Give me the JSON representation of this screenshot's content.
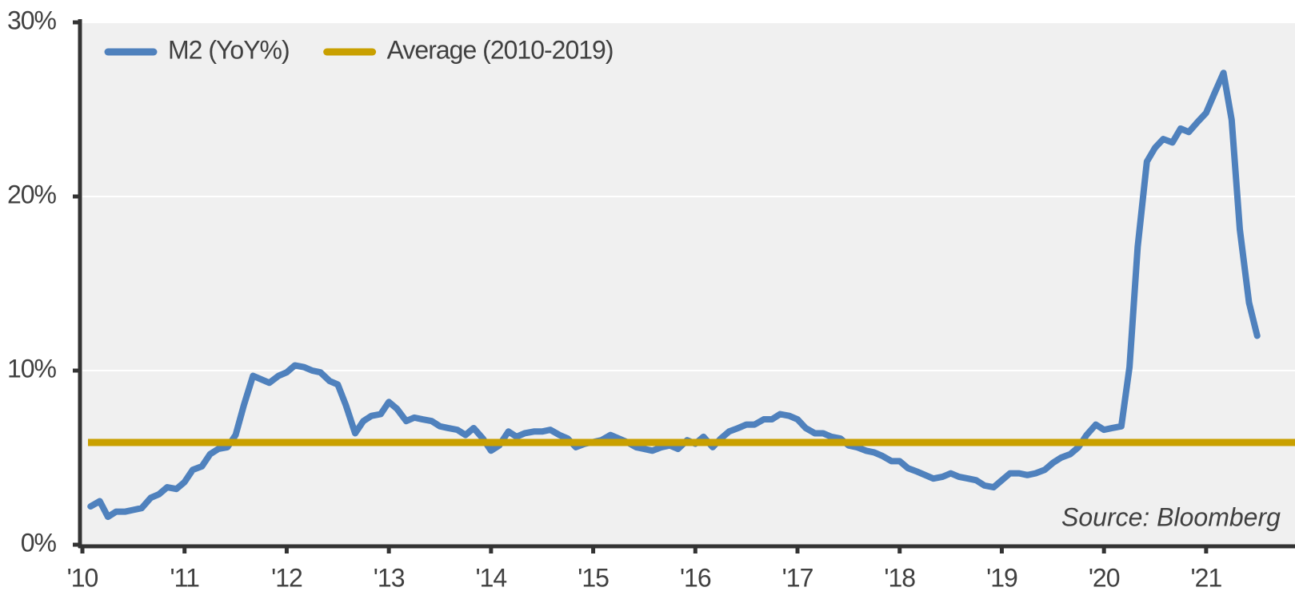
{
  "chart_data": {
    "type": "line",
    "annotation": "Source: Bloomberg",
    "x": [
      2010.08,
      2010.17,
      2010.25,
      2010.33,
      2010.42,
      2010.5,
      2010.58,
      2010.67,
      2010.75,
      2010.83,
      2010.92,
      2011.0,
      2011.08,
      2011.17,
      2011.25,
      2011.33,
      2011.42,
      2011.5,
      2011.58,
      2011.67,
      2011.75,
      2011.83,
      2011.92,
      2012.0,
      2012.08,
      2012.17,
      2012.25,
      2012.33,
      2012.42,
      2012.5,
      2012.58,
      2012.67,
      2012.75,
      2012.83,
      2012.92,
      2013.0,
      2013.08,
      2013.17,
      2013.25,
      2013.33,
      2013.42,
      2013.5,
      2013.58,
      2013.67,
      2013.75,
      2013.83,
      2013.92,
      2014.0,
      2014.08,
      2014.17,
      2014.25,
      2014.33,
      2014.42,
      2014.5,
      2014.58,
      2014.67,
      2014.75,
      2014.83,
      2014.92,
      2015.0,
      2015.08,
      2015.17,
      2015.25,
      2015.33,
      2015.42,
      2015.5,
      2015.58,
      2015.67,
      2015.75,
      2015.83,
      2015.92,
      2016.0,
      2016.08,
      2016.17,
      2016.25,
      2016.33,
      2016.42,
      2016.5,
      2016.58,
      2016.67,
      2016.75,
      2016.83,
      2016.92,
      2017.0,
      2017.08,
      2017.17,
      2017.25,
      2017.33,
      2017.42,
      2017.5,
      2017.58,
      2017.67,
      2017.75,
      2017.83,
      2017.92,
      2018.0,
      2018.08,
      2018.17,
      2018.25,
      2018.33,
      2018.42,
      2018.5,
      2018.58,
      2018.67,
      2018.75,
      2018.83,
      2018.92,
      2019.0,
      2019.08,
      2019.17,
      2019.25,
      2019.33,
      2019.42,
      2019.5,
      2019.58,
      2019.67,
      2019.75,
      2019.83,
      2019.92,
      2020.0,
      2020.08,
      2020.17,
      2020.25,
      2020.33,
      2020.42,
      2020.5,
      2020.58,
      2020.67,
      2020.75,
      2020.83,
      2020.92,
      2021.0,
      2021.08,
      2021.17,
      2021.25,
      2021.33,
      2021.42,
      2021.5
    ],
    "series": [
      {
        "name": "M2 (YoY%)",
        "color": "#4f81bd",
        "values": [
          2.2,
          2.5,
          1.6,
          1.9,
          1.9,
          2.0,
          2.1,
          2.7,
          2.9,
          3.3,
          3.2,
          3.6,
          4.3,
          4.5,
          5.2,
          5.5,
          5.6,
          6.3,
          8.0,
          9.7,
          9.5,
          9.3,
          9.7,
          9.9,
          10.3,
          10.2,
          10.0,
          9.9,
          9.4,
          9.2,
          8.0,
          6.4,
          7.1,
          7.4,
          7.5,
          8.2,
          7.8,
          7.1,
          7.3,
          7.2,
          7.1,
          6.8,
          6.7,
          6.6,
          6.3,
          6.7,
          6.1,
          5.4,
          5.7,
          6.5,
          6.2,
          6.4,
          6.5,
          6.5,
          6.6,
          6.3,
          6.1,
          5.6,
          5.8,
          5.9,
          6.0,
          6.3,
          6.1,
          5.9,
          5.6,
          5.5,
          5.4,
          5.6,
          5.7,
          5.5,
          6.0,
          5.8,
          6.2,
          5.6,
          6.1,
          6.5,
          6.7,
          6.9,
          6.9,
          7.2,
          7.2,
          7.5,
          7.4,
          7.2,
          6.7,
          6.4,
          6.4,
          6.2,
          6.1,
          5.7,
          5.6,
          5.4,
          5.3,
          5.1,
          4.8,
          4.8,
          4.4,
          4.2,
          4.0,
          3.8,
          3.9,
          4.1,
          3.9,
          3.8,
          3.7,
          3.4,
          3.3,
          3.7,
          4.1,
          4.1,
          4.0,
          4.1,
          4.3,
          4.7,
          5.0,
          5.2,
          5.6,
          6.3,
          6.9,
          6.6,
          6.7,
          6.8,
          10.2,
          17.1,
          22.0,
          22.8,
          23.3,
          23.1,
          23.9,
          23.7,
          24.3,
          24.8,
          25.9,
          27.1,
          24.4,
          18.1,
          13.9,
          12.0
        ]
      },
      {
        "name": "Average (2010-2019)",
        "color": "#c9a000",
        "value": 5.87
      }
    ],
    "xlim": [
      2010,
      2021.87
    ],
    "xticks": [
      {
        "value": 2010,
        "label": "'10"
      },
      {
        "value": 2011,
        "label": "'11"
      },
      {
        "value": 2012,
        "label": "'12"
      },
      {
        "value": 2013,
        "label": "'13"
      },
      {
        "value": 2014,
        "label": "'14"
      },
      {
        "value": 2015,
        "label": "'15"
      },
      {
        "value": 2016,
        "label": "'16"
      },
      {
        "value": 2017,
        "label": "'17"
      },
      {
        "value": 2018,
        "label": "'18"
      },
      {
        "value": 2019,
        "label": "'19"
      },
      {
        "value": 2020,
        "label": "'20"
      },
      {
        "value": 2021,
        "label": "'21"
      }
    ],
    "ylim": [
      0,
      30
    ],
    "yticks": [
      {
        "value": 0,
        "label": "0%"
      },
      {
        "value": 10,
        "label": "10%"
      },
      {
        "value": 20,
        "label": "20%"
      },
      {
        "value": 30,
        "label": "30%"
      }
    ],
    "grid": true,
    "legend": "top-left"
  }
}
